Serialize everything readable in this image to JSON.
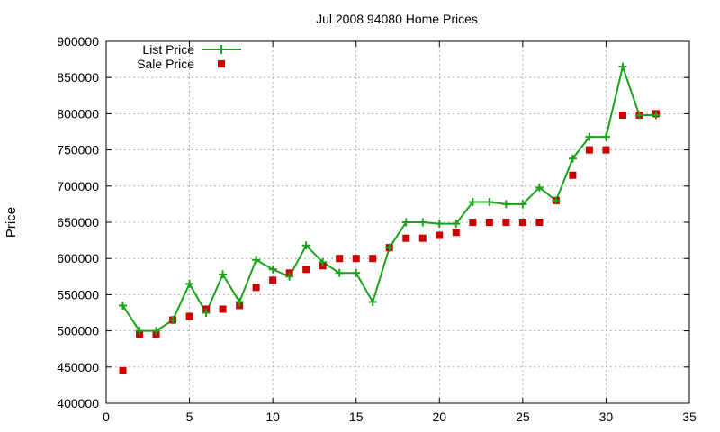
{
  "chart_data": {
    "type": "line",
    "title": "Jul 2008 94080 Home Prices",
    "xlabel": "",
    "ylabel": "Price",
    "xlim": [
      0,
      35
    ],
    "ylim": [
      400000,
      900000
    ],
    "xticks": [
      "0",
      "5",
      "10",
      "15",
      "20",
      "25",
      "30",
      "35"
    ],
    "yticks": [
      "400000",
      "450000",
      "500000",
      "550000",
      "600000",
      "650000",
      "700000",
      "750000",
      "800000",
      "850000",
      "900000"
    ],
    "grid": true,
    "legend_position": "top-left",
    "series": [
      {
        "name": "List Price",
        "style": "line-with-plus-markers",
        "color": "#1aa31a",
        "points": [
          [
            1,
            535000
          ],
          [
            2,
            500000
          ],
          [
            3,
            500000
          ],
          [
            4,
            515000
          ],
          [
            5,
            565000
          ],
          [
            6,
            525000
          ],
          [
            7,
            578000
          ],
          [
            8,
            540000
          ],
          [
            9,
            598000
          ],
          [
            10,
            585000
          ],
          [
            11,
            575000
          ],
          [
            12,
            618000
          ],
          [
            13,
            595000
          ],
          [
            14,
            580000
          ],
          [
            15,
            580000
          ],
          [
            16,
            540000
          ],
          [
            17,
            615000
          ],
          [
            18,
            650000
          ],
          [
            19,
            650000
          ],
          [
            20,
            648000
          ],
          [
            21,
            648000
          ],
          [
            22,
            678000
          ],
          [
            23,
            678000
          ],
          [
            24,
            675000
          ],
          [
            25,
            675000
          ],
          [
            26,
            698000
          ],
          [
            27,
            680000
          ],
          [
            28,
            738000
          ],
          [
            29,
            768000
          ],
          [
            30,
            768000
          ],
          [
            31,
            865000
          ],
          [
            32,
            798000
          ],
          [
            33,
            798000
          ]
        ]
      },
      {
        "name": "Sale Price",
        "style": "square-markers",
        "color": "#cc0000",
        "points": [
          [
            1,
            445000
          ],
          [
            2,
            495000
          ],
          [
            3,
            495000
          ],
          [
            4,
            515000
          ],
          [
            5,
            520000
          ],
          [
            6,
            530000
          ],
          [
            7,
            530000
          ],
          [
            8,
            535000
          ],
          [
            9,
            560000
          ],
          [
            10,
            570000
          ],
          [
            11,
            580000
          ],
          [
            12,
            585000
          ],
          [
            13,
            590000
          ],
          [
            14,
            600000
          ],
          [
            15,
            600000
          ],
          [
            16,
            600000
          ],
          [
            17,
            615000
          ],
          [
            18,
            628000
          ],
          [
            19,
            628000
          ],
          [
            20,
            632000
          ],
          [
            21,
            636000
          ],
          [
            22,
            650000
          ],
          [
            23,
            650000
          ],
          [
            24,
            650000
          ],
          [
            25,
            650000
          ],
          [
            26,
            650000
          ],
          [
            27,
            680000
          ],
          [
            28,
            715000
          ],
          [
            29,
            750000
          ],
          [
            30,
            750000
          ],
          [
            31,
            798000
          ],
          [
            32,
            798000
          ],
          [
            33,
            800000
          ]
        ]
      }
    ]
  }
}
